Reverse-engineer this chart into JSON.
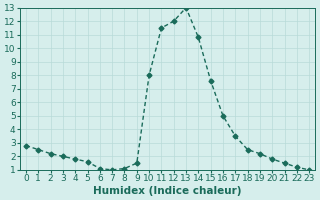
{
  "x": [
    0,
    1,
    2,
    3,
    4,
    5,
    6,
    7,
    8,
    9,
    10,
    11,
    12,
    13,
    14,
    15,
    16,
    17,
    18,
    19,
    20,
    21,
    22,
    23
  ],
  "y": [
    2.8,
    2.5,
    2.2,
    2.0,
    1.8,
    1.6,
    1.1,
    1.0,
    1.1,
    1.5,
    8.0,
    11.5,
    12.0,
    13.0,
    10.8,
    7.6,
    5.0,
    3.5,
    2.5,
    2.2,
    1.8,
    1.5,
    1.2,
    1.0
  ],
  "xlabel": "Humidex (Indice chaleur)",
  "ylabel": "",
  "line_color": "#1a6b5a",
  "marker": "D",
  "marker_size": 2.5,
  "bg_color": "#d6eeec",
  "grid_color": "#b8dbd8",
  "xlim": [
    -0.5,
    23.5
  ],
  "ylim": [
    1,
    13
  ],
  "yticks": [
    1,
    2,
    3,
    4,
    5,
    6,
    7,
    8,
    9,
    10,
    11,
    12,
    13
  ],
  "xticks": [
    0,
    1,
    2,
    3,
    4,
    5,
    6,
    7,
    8,
    9,
    10,
    11,
    12,
    13,
    14,
    15,
    16,
    17,
    18,
    19,
    20,
    21,
    22,
    23
  ],
  "tick_fontsize": 6.5,
  "xlabel_fontsize": 7.5
}
